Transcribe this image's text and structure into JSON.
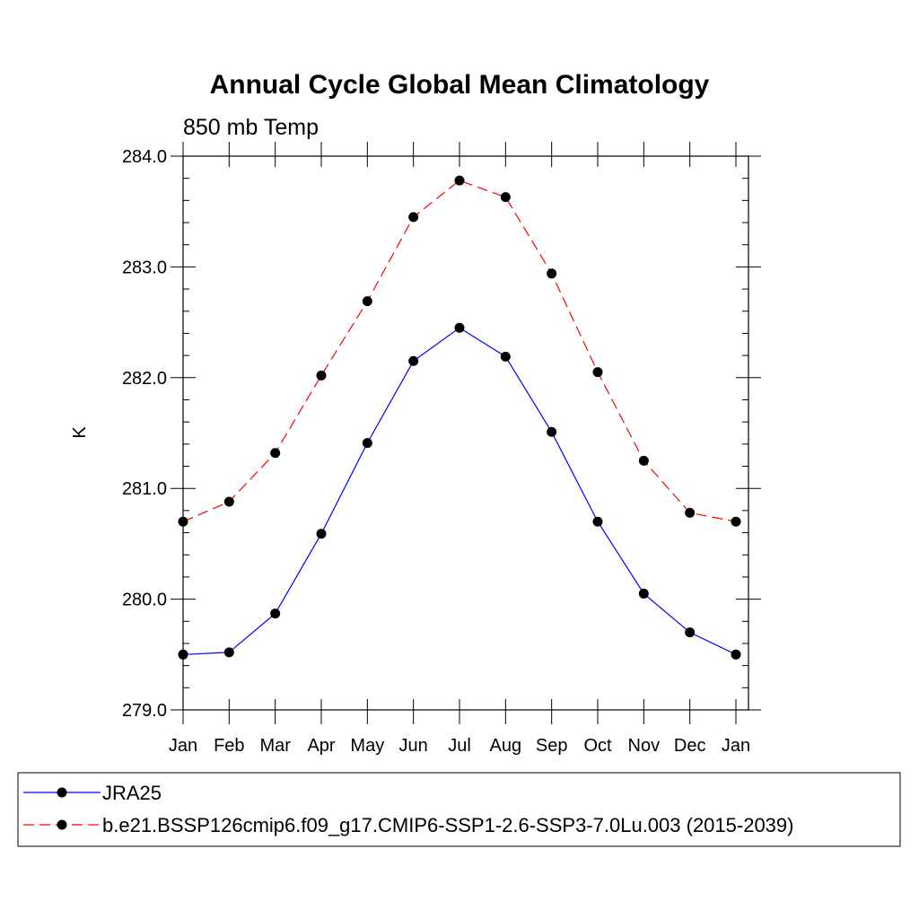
{
  "chart_data": {
    "type": "line",
    "title": "Annual Cycle Global Mean Climatology",
    "subtitle": "850 mb Temp",
    "xlabel": "",
    "ylabel": "K",
    "categories": [
      "Jan",
      "Feb",
      "Mar",
      "Apr",
      "May",
      "Jun",
      "Jul",
      "Aug",
      "Sep",
      "Oct",
      "Nov",
      "Dec",
      "Jan"
    ],
    "ylim": [
      279.0,
      284.0
    ],
    "yticks": [
      "279.0",
      "280.0",
      "281.0",
      "282.0",
      "283.0",
      "284.0"
    ],
    "grid": false,
    "legend_position": "bottom",
    "series": [
      {
        "name": "JRA25",
        "color": "#0000ff",
        "dash": "solid",
        "marker": "filled-circle",
        "values": [
          279.5,
          279.52,
          279.87,
          280.59,
          281.41,
          282.15,
          282.45,
          282.19,
          281.51,
          280.7,
          280.05,
          279.7,
          279.5
        ]
      },
      {
        "name": "b.e21.BSSP126cmip6.f09_g17.CMIP6-SSP1-2.6-SSP3-7.0Lu.003 (2015-2039)",
        "color": "#ff0000",
        "dash": "dashed",
        "marker": "filled-circle",
        "values": [
          280.7,
          280.88,
          281.32,
          282.02,
          282.69,
          283.45,
          283.78,
          283.63,
          282.94,
          282.05,
          281.25,
          280.78,
          280.7
        ]
      }
    ]
  }
}
